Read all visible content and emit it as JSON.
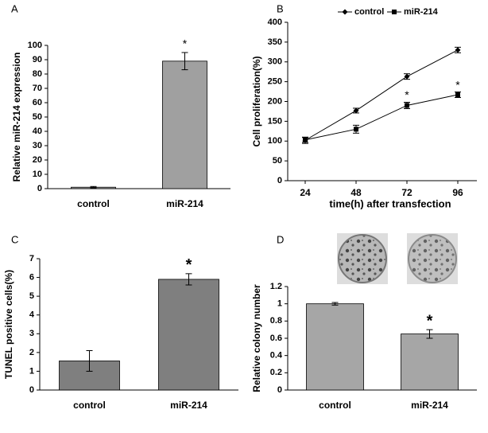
{
  "chart_data": [
    {
      "type": "bar",
      "panel_label": "A",
      "ylabel": "Relative  miR-214  expression",
      "categories": [
        "control",
        "miR-214"
      ],
      "values": [
        1,
        89
      ],
      "errors": [
        0.5,
        6
      ],
      "markers": [
        null,
        "*"
      ],
      "color": "#a0a0a0",
      "ylim": [
        0,
        100
      ],
      "yticks": [
        0,
        10,
        20,
        30,
        40,
        50,
        60,
        70,
        80,
        90,
        100
      ]
    },
    {
      "type": "line",
      "panel_label": "B",
      "ylabel": "Cell proliferation(%)",
      "xlabel": "time(h) after transfection",
      "categories": [
        "24",
        "48",
        "72",
        "96"
      ],
      "series": [
        {
          "name": "control",
          "color": "#000000",
          "marker": "diamond",
          "values": [
            102,
            177,
            263,
            330
          ],
          "errors": [
            8,
            6,
            7,
            7
          ],
          "markers": [
            null,
            null,
            null,
            null
          ]
        },
        {
          "name": "miR-214",
          "color": "#000000",
          "marker": "square",
          "values": [
            103,
            130,
            190,
            217
          ],
          "errors": [
            6,
            10,
            8,
            7
          ],
          "markers": [
            null,
            null,
            "*",
            "*"
          ]
        }
      ],
      "ylim": [
        0,
        400
      ],
      "yticks": [
        0,
        50,
        100,
        150,
        200,
        250,
        300,
        350,
        400
      ],
      "legend": "top"
    },
    {
      "type": "bar",
      "panel_label": "C",
      "ylabel": "TUNEL positive cells(%)",
      "categories": [
        "control",
        "miR-214"
      ],
      "values": [
        1.55,
        5.9
      ],
      "errors": [
        0.55,
        0.3
      ],
      "markers": [
        null,
        "*"
      ],
      "color": "#7f7f7f",
      "ylim": [
        0,
        7
      ],
      "yticks": [
        0,
        1,
        2,
        3,
        4,
        5,
        6,
        7
      ]
    },
    {
      "type": "bar",
      "panel_label": "D",
      "ylabel": "Relative  colony  number",
      "categories": [
        "control",
        "miR-214"
      ],
      "values": [
        1.0,
        0.65
      ],
      "errors": [
        0.015,
        0.05
      ],
      "markers": [
        null,
        "*"
      ],
      "color": "#a6a6a6",
      "ylim": [
        0,
        1.2
      ],
      "yticks": [
        0,
        0.2,
        0.4,
        0.6,
        0.8,
        1,
        1.2
      ]
    }
  ]
}
